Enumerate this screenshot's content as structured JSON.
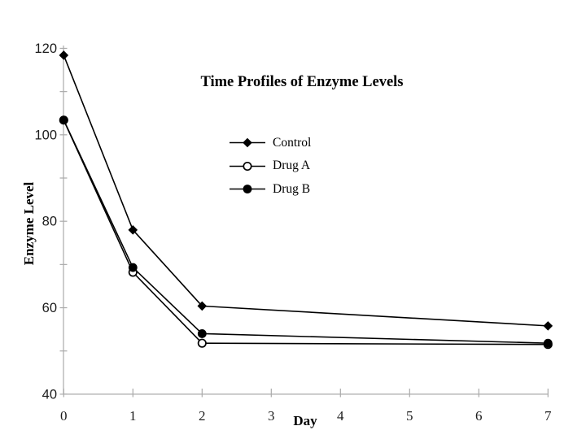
{
  "title": "Time Profiles of Enzyme Levels",
  "colors": {
    "foreground": "#000000",
    "axis": "#aaaaaa",
    "tick_label": "#1c1c1c",
    "background": "#ffffff"
  },
  "chart_data": {
    "type": "line",
    "title": "Time Profiles of Enzyme Levels",
    "xlabel": "Day",
    "ylabel": "Enzyme Level",
    "x": [
      0,
      1,
      2,
      7
    ],
    "series": [
      {
        "name": "Control",
        "marker": "filled-diamond",
        "values": [
          118.4,
          78.0,
          60.4,
          55.8
        ]
      },
      {
        "name": "Drug A",
        "marker": "open-circle",
        "values": [
          103.4,
          68.2,
          51.8,
          51.5
        ]
      },
      {
        "name": "Drug B",
        "marker": "filled-circle",
        "values": [
          103.4,
          69.3,
          54.0,
          51.8
        ]
      }
    ],
    "xlim": [
      0,
      7
    ],
    "ylim": [
      40,
      120
    ],
    "xticks": [
      0,
      1,
      2,
      3,
      4,
      5,
      6,
      7
    ],
    "yticks_labeled": [
      40,
      60,
      80,
      100,
      120
    ],
    "yticks_minor_step": 10,
    "grid": false,
    "legend_position": "upper-center-inside"
  }
}
